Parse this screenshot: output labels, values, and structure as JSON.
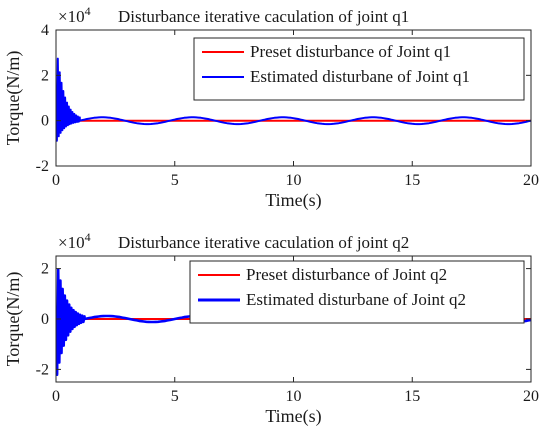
{
  "chart_data": [
    {
      "type": "line",
      "title": "Disturbance iterative caculation of joint q1",
      "multiplier_base": "×10",
      "multiplier_exp": "4",
      "xlabel": "Time(s)",
      "ylabel": "Torque(N/m)",
      "xlim": [
        0,
        20
      ],
      "ylim": [
        -2,
        4
      ],
      "xticks": [
        "0",
        "5",
        "10",
        "15",
        "20"
      ],
      "yticks": [
        "-2",
        "0",
        "2",
        "4"
      ],
      "grid": false,
      "legend_position": "top-right",
      "series": [
        {
          "name": "Preset disturbance of Joint q1",
          "color": "#ff0000",
          "style": "flat",
          "x": [
            0,
            20
          ],
          "y": [
            0,
            0
          ]
        },
        {
          "name": "Estimated disturbane of Joint q1",
          "color": "#0000ff",
          "style": "transient-then-sine",
          "burst": {
            "start": 0,
            "end": 1.0,
            "peak": 3.5,
            "low": -1.0
          },
          "sine": {
            "amplitude": 0.15,
            "period": 3.8
          }
        }
      ]
    },
    {
      "type": "line",
      "title": "Disturbance iterative caculation of joint q2",
      "multiplier_base": "×10",
      "multiplier_exp": "4",
      "xlabel": "Time(s)",
      "ylabel": "Torque(N/m)",
      "xlim": [
        0,
        20
      ],
      "ylim": [
        -2.5,
        2.5
      ],
      "xticks": [
        "0",
        "5",
        "10",
        "15",
        "20"
      ],
      "yticks": [
        "-2",
        "0",
        "2"
      ],
      "grid": false,
      "legend_position": "top-right",
      "series": [
        {
          "name": "Preset disturbance of Joint q2",
          "color": "#ff0000",
          "style": "flat",
          "x": [
            0,
            20
          ],
          "y": [
            0,
            0
          ]
        },
        {
          "name": "Estimated disturbane of Joint q2",
          "color": "#0000ff",
          "style": "transient-then-sine",
          "burst": {
            "start": 0,
            "end": 1.2,
            "peak": 2.5,
            "low": -2.5
          },
          "sine": {
            "amplitude": 0.12,
            "period": 3.8
          }
        }
      ]
    }
  ]
}
